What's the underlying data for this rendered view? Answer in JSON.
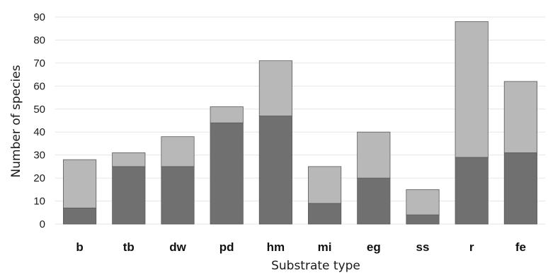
{
  "chart_data": {
    "type": "bar",
    "stacked": true,
    "categories": [
      "b",
      "tb",
      "dw",
      "pd",
      "hm",
      "mi",
      "eg",
      "ss",
      "r",
      "fe"
    ],
    "series": [
      {
        "values": [
          7,
          25,
          25,
          44,
          47,
          9,
          20,
          4,
          29,
          31
        ],
        "color": "#707070"
      },
      {
        "values": [
          21,
          6,
          13,
          7,
          24,
          16,
          20,
          11,
          59,
          31
        ],
        "color": "#b8b8b8"
      }
    ],
    "totals": [
      28,
      31,
      38,
      51,
      71,
      25,
      40,
      15,
      88,
      62
    ],
    "xlabel": "Substrate type",
    "ylabel": "Number of species",
    "ylim": [
      0,
      90
    ],
    "yticks": [
      0,
      10,
      20,
      30,
      40,
      50,
      60,
      70,
      80,
      90
    ],
    "grid": true,
    "legend": "none"
  }
}
